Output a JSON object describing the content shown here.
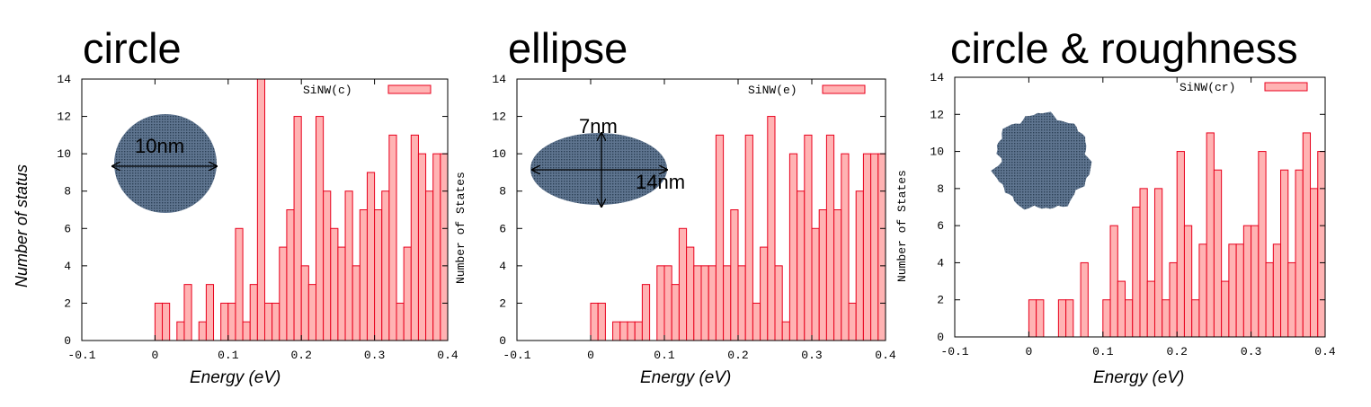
{
  "colors": {
    "bar_fill": "#ffb3b3",
    "bar_stroke": "#e8001c",
    "shape_fill": "#5f7590",
    "shape_dots": "#2b3f55"
  },
  "chart_data": [
    {
      "type": "bar",
      "title": "circle",
      "xlabel": "Energy (eV)",
      "ylabel": "Number of status",
      "xlim": [
        -0.1,
        0.4
      ],
      "ylim": [
        0,
        14
      ],
      "xticks": [
        "-0.1",
        "0",
        "0.1",
        "0.2",
        "0.3",
        "0.4"
      ],
      "yticks": [
        "0",
        "2",
        "4",
        "6",
        "8",
        "10",
        "12",
        "14"
      ],
      "legend": "SiNW(c)",
      "legend_position": "top-right",
      "grid": false,
      "inset_shape": "circle",
      "annotations": [
        "10nm"
      ],
      "bin_width": 0.01,
      "x": [
        0.005,
        0.015,
        0.035,
        0.045,
        0.065,
        0.075,
        0.095,
        0.105,
        0.115,
        0.125,
        0.135,
        0.145,
        0.155,
        0.165,
        0.175,
        0.185,
        0.195,
        0.205,
        0.215,
        0.225,
        0.235,
        0.245,
        0.255,
        0.265,
        0.275,
        0.285,
        0.295,
        0.305,
        0.315,
        0.325,
        0.335,
        0.345,
        0.355,
        0.365,
        0.375,
        0.385,
        0.395
      ],
      "values": [
        2,
        2,
        1,
        3,
        1,
        3,
        2,
        2,
        6,
        1,
        3,
        14,
        2,
        2,
        5,
        7,
        12,
        4,
        3,
        12,
        8,
        6,
        5,
        8,
        4,
        7,
        9,
        7,
        8,
        11,
        2,
        5,
        11,
        10,
        8,
        10,
        10
      ]
    },
    {
      "type": "bar",
      "title": "ellipse",
      "xlabel": "Energy (eV)",
      "ylabel": "Number of States",
      "xlim": [
        -0.1,
        0.4
      ],
      "ylim": [
        0,
        14
      ],
      "xticks": [
        "-0.1",
        "0",
        "0.1",
        "0.2",
        "0.3",
        "0.4"
      ],
      "yticks": [
        "0",
        "2",
        "4",
        "6",
        "8",
        "10",
        "12",
        "14"
      ],
      "legend": "SiNW(e)",
      "legend_position": "top-right",
      "grid": false,
      "inset_shape": "ellipse",
      "annotations": [
        "7nm",
        "14nm"
      ],
      "bin_width": 0.01,
      "x": [
        0.005,
        0.015,
        0.035,
        0.045,
        0.055,
        0.065,
        0.075,
        0.095,
        0.105,
        0.115,
        0.125,
        0.135,
        0.145,
        0.155,
        0.165,
        0.175,
        0.185,
        0.195,
        0.205,
        0.215,
        0.225,
        0.235,
        0.245,
        0.255,
        0.265,
        0.275,
        0.285,
        0.295,
        0.305,
        0.315,
        0.325,
        0.335,
        0.345,
        0.355,
        0.365,
        0.375,
        0.385,
        0.395
      ],
      "values": [
        2,
        2,
        1,
        1,
        1,
        1,
        3,
        4,
        4,
        3,
        6,
        5,
        4,
        4,
        4,
        11,
        4,
        7,
        4,
        11,
        2,
        5,
        12,
        4,
        1,
        10,
        8,
        11,
        6,
        7,
        11,
        7,
        10,
        2,
        8,
        10,
        10,
        10
      ]
    },
    {
      "type": "bar",
      "title": "circle & roughness",
      "xlabel": "Energy (eV)",
      "ylabel": "Number of States",
      "xlim": [
        -0.1,
        0.4
      ],
      "ylim": [
        0,
        14
      ],
      "xticks": [
        "-0.1",
        "0",
        "0.1",
        "0.2",
        "0.3",
        "0.4"
      ],
      "yticks": [
        "0",
        "2",
        "4",
        "6",
        "8",
        "10",
        "12",
        "14"
      ],
      "legend": "SiNW(cr)",
      "legend_position": "top-right",
      "grid": false,
      "inset_shape": "rough-circle",
      "annotations": [],
      "bin_width": 0.01,
      "x": [
        0.005,
        0.015,
        0.045,
        0.055,
        0.075,
        0.105,
        0.115,
        0.125,
        0.135,
        0.145,
        0.155,
        0.165,
        0.175,
        0.185,
        0.195,
        0.205,
        0.215,
        0.225,
        0.235,
        0.245,
        0.255,
        0.265,
        0.275,
        0.285,
        0.295,
        0.305,
        0.315,
        0.325,
        0.335,
        0.345,
        0.355,
        0.365,
        0.375,
        0.385,
        0.395
      ],
      "values": [
        2,
        2,
        2,
        2,
        4,
        2,
        6,
        3,
        2,
        7,
        8,
        3,
        8,
        2,
        4,
        10,
        6,
        2,
        5,
        11,
        9,
        3,
        5,
        5,
        6,
        6,
        10,
        4,
        5,
        9,
        4,
        9,
        11,
        8,
        10
      ]
    }
  ]
}
